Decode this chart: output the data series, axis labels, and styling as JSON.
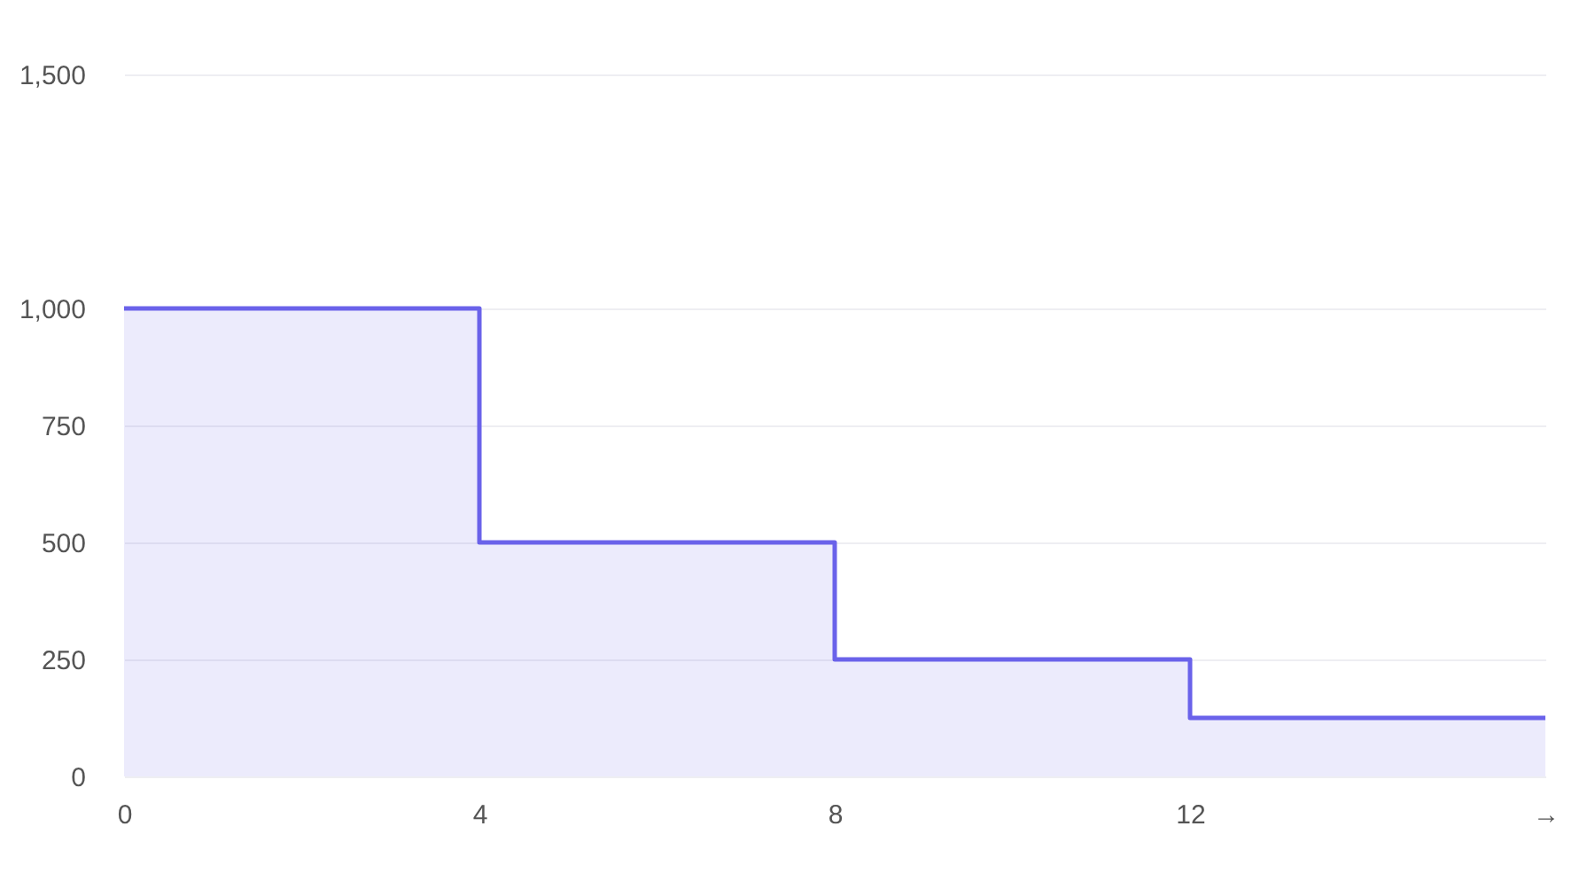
{
  "chart_data": {
    "type": "area",
    "x": [
      0,
      4,
      4,
      8,
      8,
      12,
      12,
      16
    ],
    "series": [
      {
        "color": "#6a62ea",
        "values": [
          1000,
          1000,
          500,
          500,
          250,
          250,
          125,
          125
        ]
      }
    ],
    "xlim": [
      0,
      16
    ],
    "xticks": [
      0,
      4,
      8,
      12,
      {
        "value": 16,
        "label": "→"
      }
    ],
    "ylim": [
      0,
      1500
    ],
    "yticks": [
      0,
      250,
      500,
      750,
      {
        "value": 1000,
        "label": "1,000"
      },
      {
        "value": 1500,
        "label": "1,500"
      }
    ],
    "grid": "y"
  }
}
